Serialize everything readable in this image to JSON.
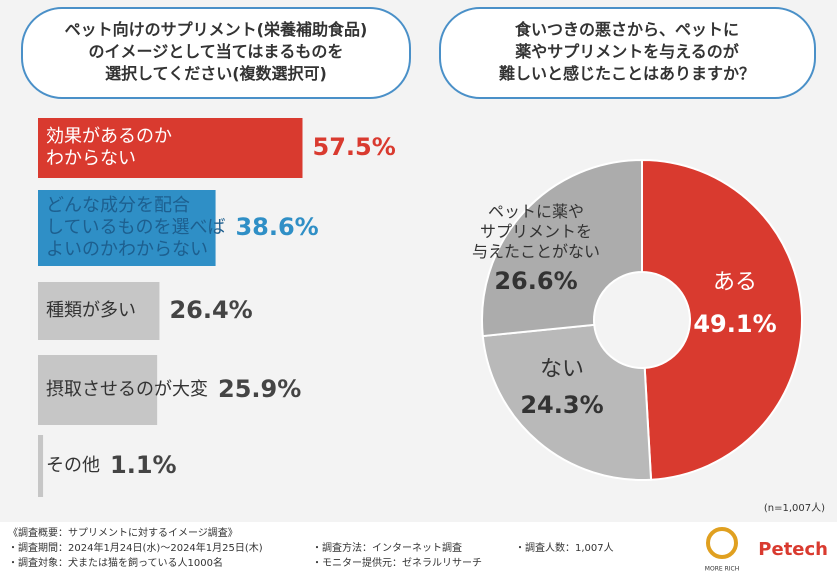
{
  "chart_data": [
    {
      "type": "bar",
      "title": "ペット向けのサプリメント(栄養補助食品)\nのイメージとして当てはまるものを\n選択してください(複数選択可)",
      "categories": [
        "効果があるのか\nわからない",
        "どんな成分を配合\nしているものを選べば\nよいのかわからない",
        "種類が多い",
        "摂取させるのが大変",
        "その他"
      ],
      "values": [
        57.5,
        38.6,
        26.4,
        25.9,
        1.1
      ],
      "value_labels": [
        "57.5%",
        "38.6%",
        "26.4%",
        "25.9%",
        "1.1%"
      ],
      "colors": [
        "#d93a2f",
        "#2f8fc6",
        "#c6c6c6",
        "#c6c6c6",
        "#c6c6c6"
      ]
    },
    {
      "type": "donut",
      "title": "食いつきの悪さから、ペットに\n薬やサプリメントを与えるのが\n難しいと感じたことはありますか？",
      "categories": [
        "ある",
        "ない",
        "ペットに薬や\nサプリメントを\n与えたことがない"
      ],
      "values": [
        49.1,
        24.3,
        26.6
      ],
      "value_labels": [
        "49.1%",
        "24.3%",
        "26.6%"
      ],
      "colors": [
        "#d93a2f",
        "#b9b9b9",
        "#acacac"
      ],
      "note": "(n=1,007人)"
    }
  ],
  "footer": {
    "lines": [
      "《調査概要：サプリメントに対するイメージ調査》",
      "・調査期間：2024年1月24日(水)～2024年1月25日(木)",
      "・調査対象：犬または猫を飼っている人1000名",
      "・調査方法：インターネット調査",
      "・モニター提供元：ゼネラルリサーチ",
      "・調査人数：1,007人"
    ],
    "logos": [
      "MORE RICH",
      "Petech"
    ]
  }
}
